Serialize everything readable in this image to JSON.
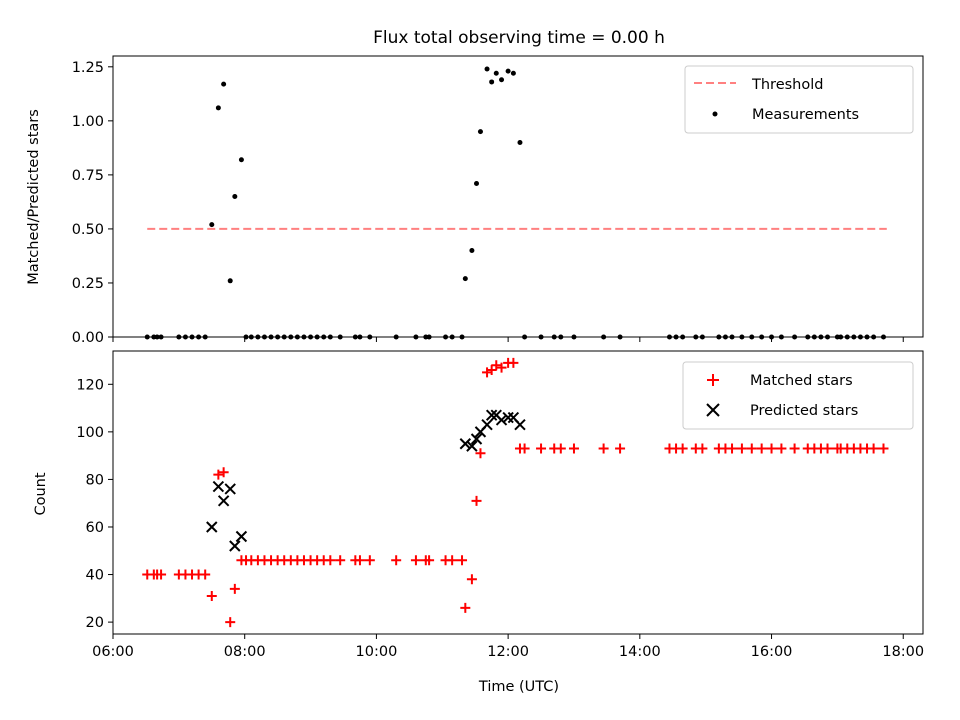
{
  "title": "Flux total observing time = 0.00 h",
  "colors": {
    "threshold": "#ff8080",
    "measurements": "#000000",
    "matched": "#ff0000",
    "predicted": "#000000",
    "axes": "#000000"
  },
  "chart_data": [
    {
      "type": "scatter",
      "ylabel": "Matched/Predicted stars",
      "xlabel": "",
      "xlim": [
        6.0,
        18.3
      ],
      "ylim": [
        0,
        1.3
      ],
      "yticks": [
        0,
        0.25,
        0.5,
        0.75,
        1.0,
        1.25
      ],
      "ytick_labels": [
        "0.00",
        "0.25",
        "0.50",
        "0.75",
        "1.00",
        "1.25"
      ],
      "grid": false,
      "legend_position": "top-right",
      "series": [
        {
          "name": "Threshold",
          "kind": "dashed-line",
          "x": [
            6.52,
            17.75
          ],
          "y": [
            0.5,
            0.5
          ]
        },
        {
          "name": "Measurements",
          "kind": "dot",
          "points": [
            [
              6.52,
              0
            ],
            [
              6.62,
              0
            ],
            [
              6.67,
              0
            ],
            [
              6.73,
              0
            ],
            [
              7.0,
              0
            ],
            [
              7.1,
              0
            ],
            [
              7.2,
              0
            ],
            [
              7.3,
              0
            ],
            [
              7.4,
              0
            ],
            [
              7.5,
              0.52
            ],
            [
              7.6,
              1.06
            ],
            [
              7.68,
              1.17
            ],
            [
              7.78,
              0.26
            ],
            [
              7.85,
              0.65
            ],
            [
              7.95,
              0.82
            ],
            [
              8.02,
              0
            ],
            [
              8.1,
              0
            ],
            [
              8.2,
              0
            ],
            [
              8.3,
              0
            ],
            [
              8.4,
              0
            ],
            [
              8.5,
              0
            ],
            [
              8.6,
              0
            ],
            [
              8.7,
              0
            ],
            [
              8.8,
              0
            ],
            [
              8.9,
              0
            ],
            [
              9.0,
              0
            ],
            [
              9.1,
              0
            ],
            [
              9.2,
              0
            ],
            [
              9.3,
              0
            ],
            [
              9.45,
              0
            ],
            [
              9.68,
              0
            ],
            [
              9.75,
              0
            ],
            [
              9.9,
              0
            ],
            [
              10.3,
              0
            ],
            [
              10.6,
              0
            ],
            [
              10.75,
              0
            ],
            [
              10.8,
              0
            ],
            [
              11.05,
              0
            ],
            [
              11.15,
              0
            ],
            [
              11.3,
              0
            ],
            [
              11.35,
              0.27
            ],
            [
              11.45,
              0.4
            ],
            [
              11.52,
              0.71
            ],
            [
              11.58,
              0.95
            ],
            [
              11.68,
              1.24
            ],
            [
              11.75,
              1.18
            ],
            [
              11.82,
              1.22
            ],
            [
              11.9,
              1.19
            ],
            [
              12.0,
              1.23
            ],
            [
              12.08,
              1.22
            ],
            [
              12.18,
              0.9
            ],
            [
              12.25,
              0
            ],
            [
              12.5,
              0
            ],
            [
              12.7,
              0
            ],
            [
              12.8,
              0
            ],
            [
              13.0,
              0
            ],
            [
              13.45,
              0
            ],
            [
              13.7,
              0
            ],
            [
              14.45,
              0
            ],
            [
              14.55,
              0
            ],
            [
              14.65,
              0
            ],
            [
              14.85,
              0
            ],
            [
              14.95,
              0
            ],
            [
              15.2,
              0
            ],
            [
              15.3,
              0
            ],
            [
              15.4,
              0
            ],
            [
              15.55,
              0
            ],
            [
              15.7,
              0
            ],
            [
              15.85,
              0
            ],
            [
              16.0,
              0
            ],
            [
              16.15,
              0
            ],
            [
              16.35,
              0
            ],
            [
              16.55,
              0
            ],
            [
              16.65,
              0
            ],
            [
              16.75,
              0
            ],
            [
              16.85,
              0
            ],
            [
              17.0,
              0
            ],
            [
              17.05,
              0
            ],
            [
              17.15,
              0
            ],
            [
              17.25,
              0
            ],
            [
              17.35,
              0
            ],
            [
              17.45,
              0
            ],
            [
              17.55,
              0
            ],
            [
              17.7,
              0
            ]
          ]
        }
      ]
    },
    {
      "type": "scatter",
      "ylabel": "Count",
      "xlabel": "Time (UTC)",
      "xlim": [
        6.0,
        18.3
      ],
      "ylim": [
        15,
        134
      ],
      "yticks": [
        20,
        40,
        60,
        80,
        100,
        120
      ],
      "ytick_labels": [
        "20",
        "40",
        "60",
        "80",
        "100",
        "120"
      ],
      "xticks": [
        6,
        8,
        10,
        12,
        14,
        16,
        18
      ],
      "xtick_labels": [
        "06:00",
        "08:00",
        "10:00",
        "12:00",
        "14:00",
        "16:00",
        "18:00"
      ],
      "grid": false,
      "legend_position": "top-right",
      "series": [
        {
          "name": "Matched stars",
          "kind": "plus",
          "points": [
            [
              6.52,
              40
            ],
            [
              6.62,
              40
            ],
            [
              6.67,
              40
            ],
            [
              6.73,
              40
            ],
            [
              7.0,
              40
            ],
            [
              7.1,
              40
            ],
            [
              7.2,
              40
            ],
            [
              7.3,
              40
            ],
            [
              7.4,
              40
            ],
            [
              7.5,
              31
            ],
            [
              7.6,
              82
            ],
            [
              7.68,
              83
            ],
            [
              7.78,
              20
            ],
            [
              7.85,
              34
            ],
            [
              7.95,
              46
            ],
            [
              8.02,
              46
            ],
            [
              8.1,
              46
            ],
            [
              8.2,
              46
            ],
            [
              8.3,
              46
            ],
            [
              8.4,
              46
            ],
            [
              8.5,
              46
            ],
            [
              8.6,
              46
            ],
            [
              8.7,
              46
            ],
            [
              8.8,
              46
            ],
            [
              8.9,
              46
            ],
            [
              9.0,
              46
            ],
            [
              9.1,
              46
            ],
            [
              9.2,
              46
            ],
            [
              9.3,
              46
            ],
            [
              9.45,
              46
            ],
            [
              9.68,
              46
            ],
            [
              9.75,
              46
            ],
            [
              9.9,
              46
            ],
            [
              10.3,
              46
            ],
            [
              10.6,
              46
            ],
            [
              10.75,
              46
            ],
            [
              10.8,
              46
            ],
            [
              11.05,
              46
            ],
            [
              11.15,
              46
            ],
            [
              11.3,
              46
            ],
            [
              11.35,
              26
            ],
            [
              11.45,
              38
            ],
            [
              11.52,
              71
            ],
            [
              11.58,
              91
            ],
            [
              11.68,
              125
            ],
            [
              11.75,
              126
            ],
            [
              11.82,
              128
            ],
            [
              11.9,
              127
            ],
            [
              12.0,
              129
            ],
            [
              12.08,
              129
            ],
            [
              12.18,
              93
            ],
            [
              12.25,
              93
            ],
            [
              12.5,
              93
            ],
            [
              12.7,
              93
            ],
            [
              12.8,
              93
            ],
            [
              13.0,
              93
            ],
            [
              13.45,
              93
            ],
            [
              13.7,
              93
            ],
            [
              14.45,
              93
            ],
            [
              14.55,
              93
            ],
            [
              14.65,
              93
            ],
            [
              14.85,
              93
            ],
            [
              14.95,
              93
            ],
            [
              15.2,
              93
            ],
            [
              15.3,
              93
            ],
            [
              15.4,
              93
            ],
            [
              15.55,
              93
            ],
            [
              15.7,
              93
            ],
            [
              15.85,
              93
            ],
            [
              16.0,
              93
            ],
            [
              16.15,
              93
            ],
            [
              16.35,
              93
            ],
            [
              16.55,
              93
            ],
            [
              16.65,
              93
            ],
            [
              16.75,
              93
            ],
            [
              16.85,
              93
            ],
            [
              17.0,
              93
            ],
            [
              17.05,
              93
            ],
            [
              17.15,
              93
            ],
            [
              17.25,
              93
            ],
            [
              17.35,
              93
            ],
            [
              17.45,
              93
            ],
            [
              17.55,
              93
            ],
            [
              17.7,
              93
            ]
          ]
        },
        {
          "name": "Predicted stars",
          "kind": "x",
          "points": [
            [
              7.5,
              60
            ],
            [
              7.6,
              77
            ],
            [
              7.68,
              71
            ],
            [
              7.78,
              76
            ],
            [
              7.85,
              52
            ],
            [
              7.95,
              56
            ],
            [
              11.35,
              95
            ],
            [
              11.45,
              94
            ],
            [
              11.52,
              97
            ],
            [
              11.58,
              100
            ],
            [
              11.68,
              103
            ],
            [
              11.75,
              107
            ],
            [
              11.82,
              107
            ],
            [
              11.9,
              105
            ],
            [
              12.0,
              106
            ],
            [
              12.08,
              106
            ],
            [
              12.18,
              103
            ]
          ]
        }
      ]
    }
  ]
}
